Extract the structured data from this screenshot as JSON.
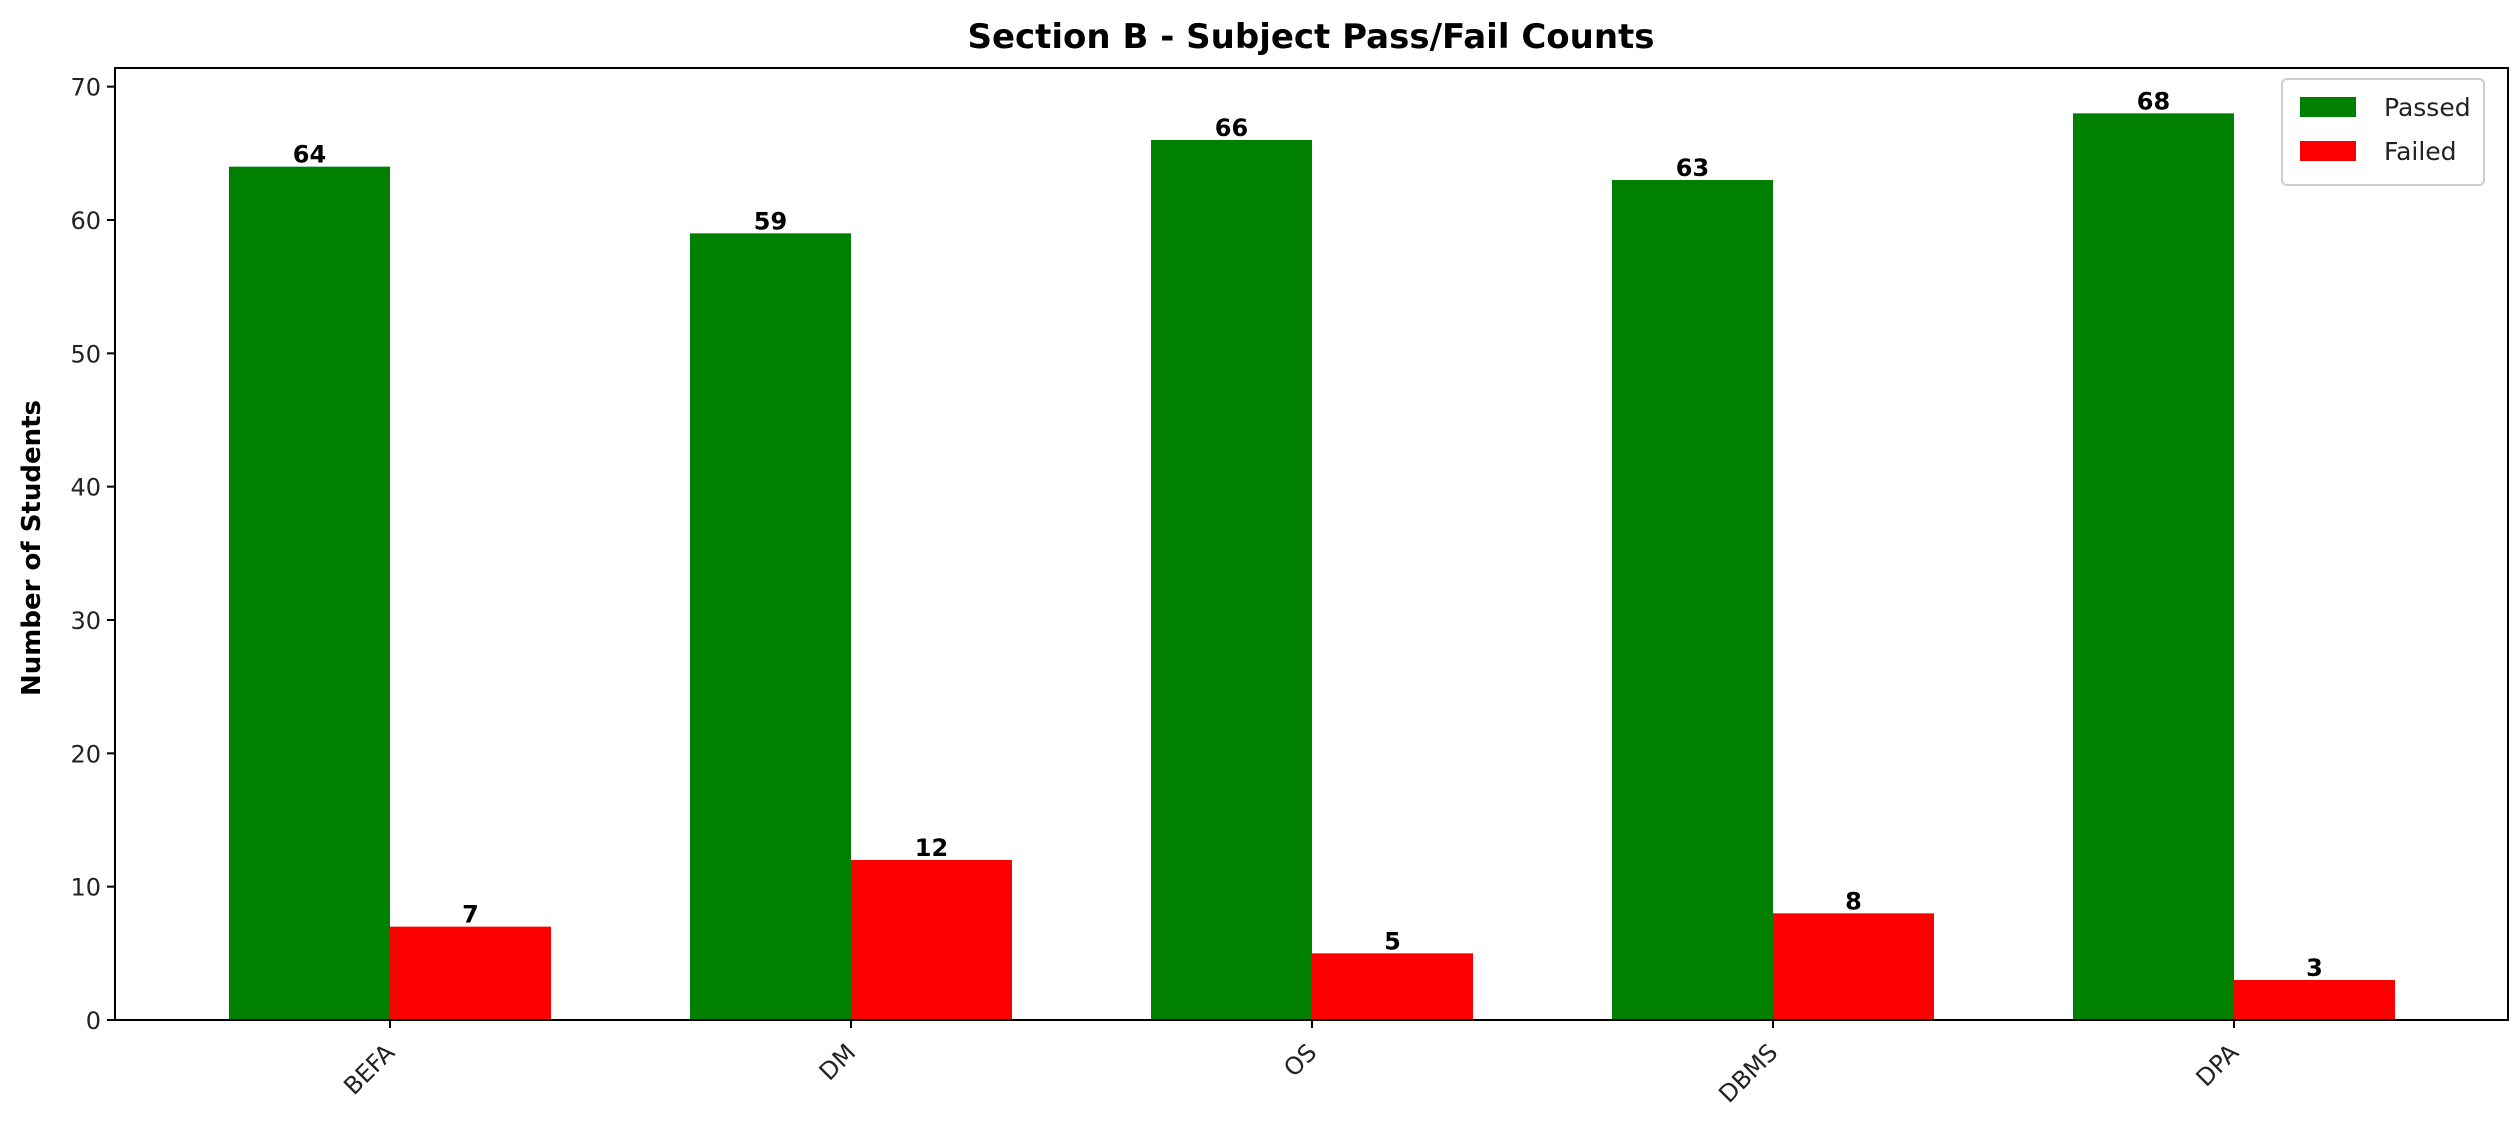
{
  "chart_data": {
    "type": "bar",
    "title": "Section B - Subject Pass/Fail Counts",
    "xlabel": "",
    "ylabel": "Number of Students",
    "categories": [
      "BEFA",
      "DM",
      "OS",
      "DBMS",
      "DPA"
    ],
    "series": [
      {
        "name": "Passed",
        "color": "#008000",
        "values": [
          64,
          59,
          66,
          63,
          68
        ]
      },
      {
        "name": "Failed",
        "color": "#ff0000",
        "values": [
          7,
          12,
          5,
          8,
          3
        ]
      }
    ],
    "ylim": [
      0,
      71.4
    ],
    "yticks": [
      0,
      10,
      20,
      30,
      40,
      50,
      60,
      70
    ],
    "grid": false,
    "legend_position": "top-right",
    "x_tick_rotation": "45"
  }
}
